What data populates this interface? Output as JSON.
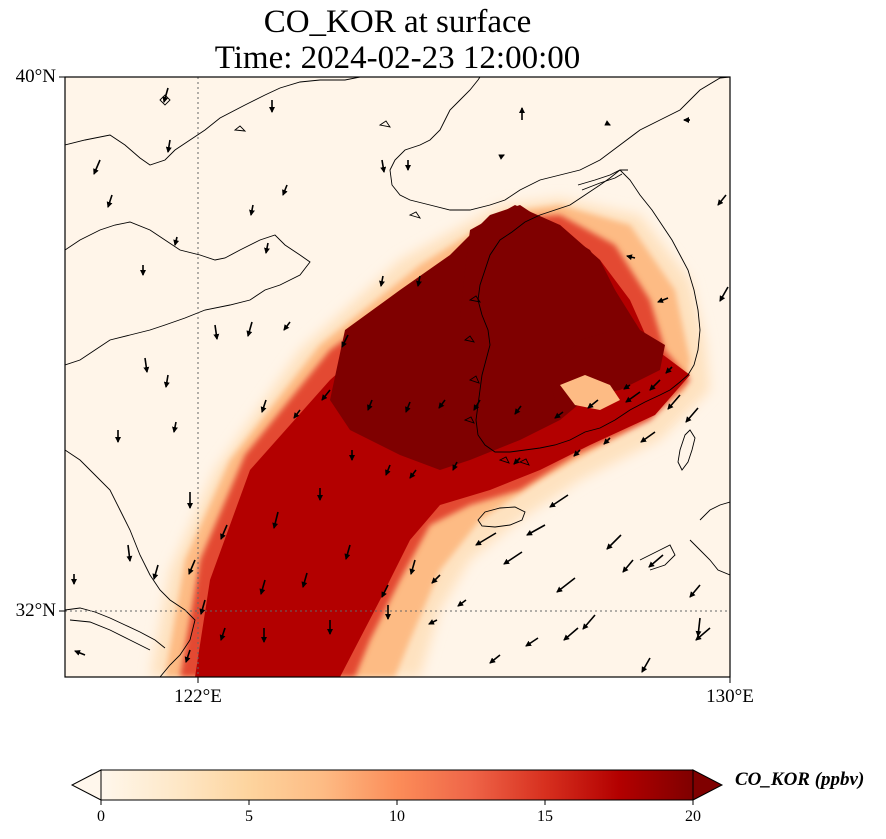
{
  "title": {
    "line1": "CO_KOR at surface",
    "line2": "Time: 2024-02-23 12:00:00"
  },
  "axes": {
    "lat_ticks": [
      {
        "value": 40,
        "label": "40°N"
      },
      {
        "value": 32,
        "label": "32°N"
      }
    ],
    "lon_ticks": [
      {
        "value": 122,
        "label": "122°E"
      },
      {
        "value": 130,
        "label": "130°E"
      }
    ],
    "lon_range": [
      120,
      130
    ],
    "lat_range": [
      31,
      40
    ],
    "gridlines": "dotted at 122°E and 32°N"
  },
  "colorbar": {
    "label": "CO_KOR (ppbv)",
    "ticks": [
      "0",
      "5",
      "10",
      "15",
      "20"
    ],
    "range": [
      0,
      20
    ],
    "extend": "both",
    "colormap": "OrRd",
    "colors": [
      "#fff7ec",
      "#fee8c8",
      "#fdd49e",
      "#fdbb84",
      "#fc8d59",
      "#ef6548",
      "#d7301f",
      "#b30000",
      "#7f0000"
    ]
  },
  "map_data": {
    "variable": "CO_KOR",
    "level": "surface",
    "units": "ppbv",
    "plume": "high concentrations (>20 ppbv) over the Korean Peninsula west coast, extending southwest across the Yellow Sea toward the Yangtze River Delta near 31°N 122°E",
    "wind_vectors": "predominantly northerly to northeasterly flow"
  }
}
